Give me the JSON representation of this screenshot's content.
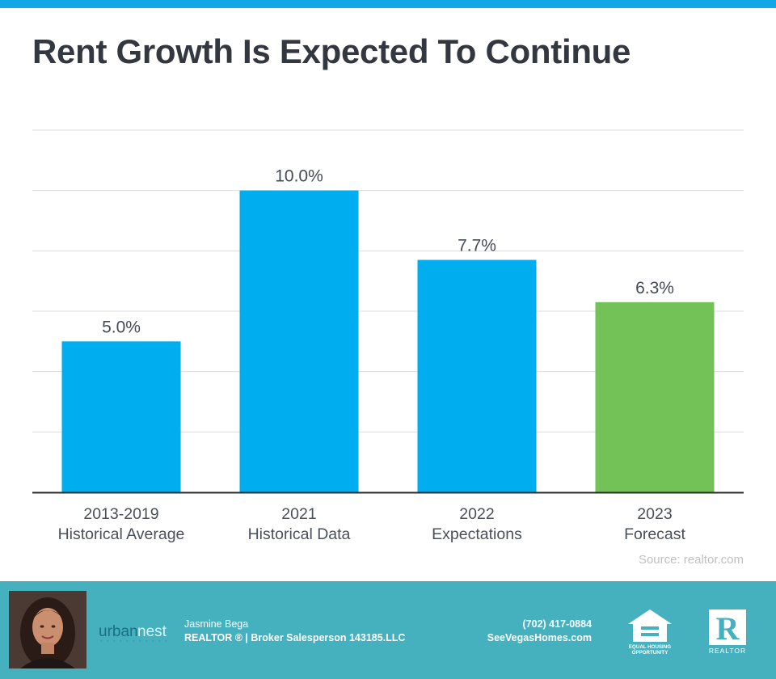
{
  "title": "Rent Growth Is Expected To Continue",
  "source": "Source: realtor.com",
  "colors": {
    "blue": "#00aeef",
    "green": "#72c257",
    "footer": "#45b1bf",
    "accent": "#0fa7e8"
  },
  "chart_data": {
    "type": "bar",
    "title": "Rent Growth Is Expected To Continue",
    "categories": [
      {
        "line1": "2013-2019",
        "line2": "Historical Average"
      },
      {
        "line1": "2021",
        "line2": "Historical Data"
      },
      {
        "line1": "2022",
        "line2": "Expectations"
      },
      {
        "line1": "2023",
        "line2": "Forecast"
      }
    ],
    "values": [
      5.0,
      10.0,
      7.7,
      6.3
    ],
    "labels": [
      "5.0%",
      "10.0%",
      "7.7%",
      "6.3%"
    ],
    "bar_colors": [
      "#00aeef",
      "#00aeef",
      "#00aeef",
      "#72c257"
    ],
    "ylim": [
      0,
      12
    ],
    "grid": true,
    "xlabel": "",
    "ylabel": ""
  },
  "footer": {
    "agent_name": "Jasmine Bega",
    "agent_role": "REALTOR ® | Broker Salesperson 143185.LLC",
    "phone": "(702) 417-0884",
    "website": "SeeVegasHomes.com",
    "logo_text_a": "urban",
    "logo_text_b": "nest",
    "eho_text_1": "EQUAL HOUSING",
    "eho_text_2": "OPPORTUNITY",
    "realtor_text": "REALTOR",
    "realtor_letter": "R"
  }
}
